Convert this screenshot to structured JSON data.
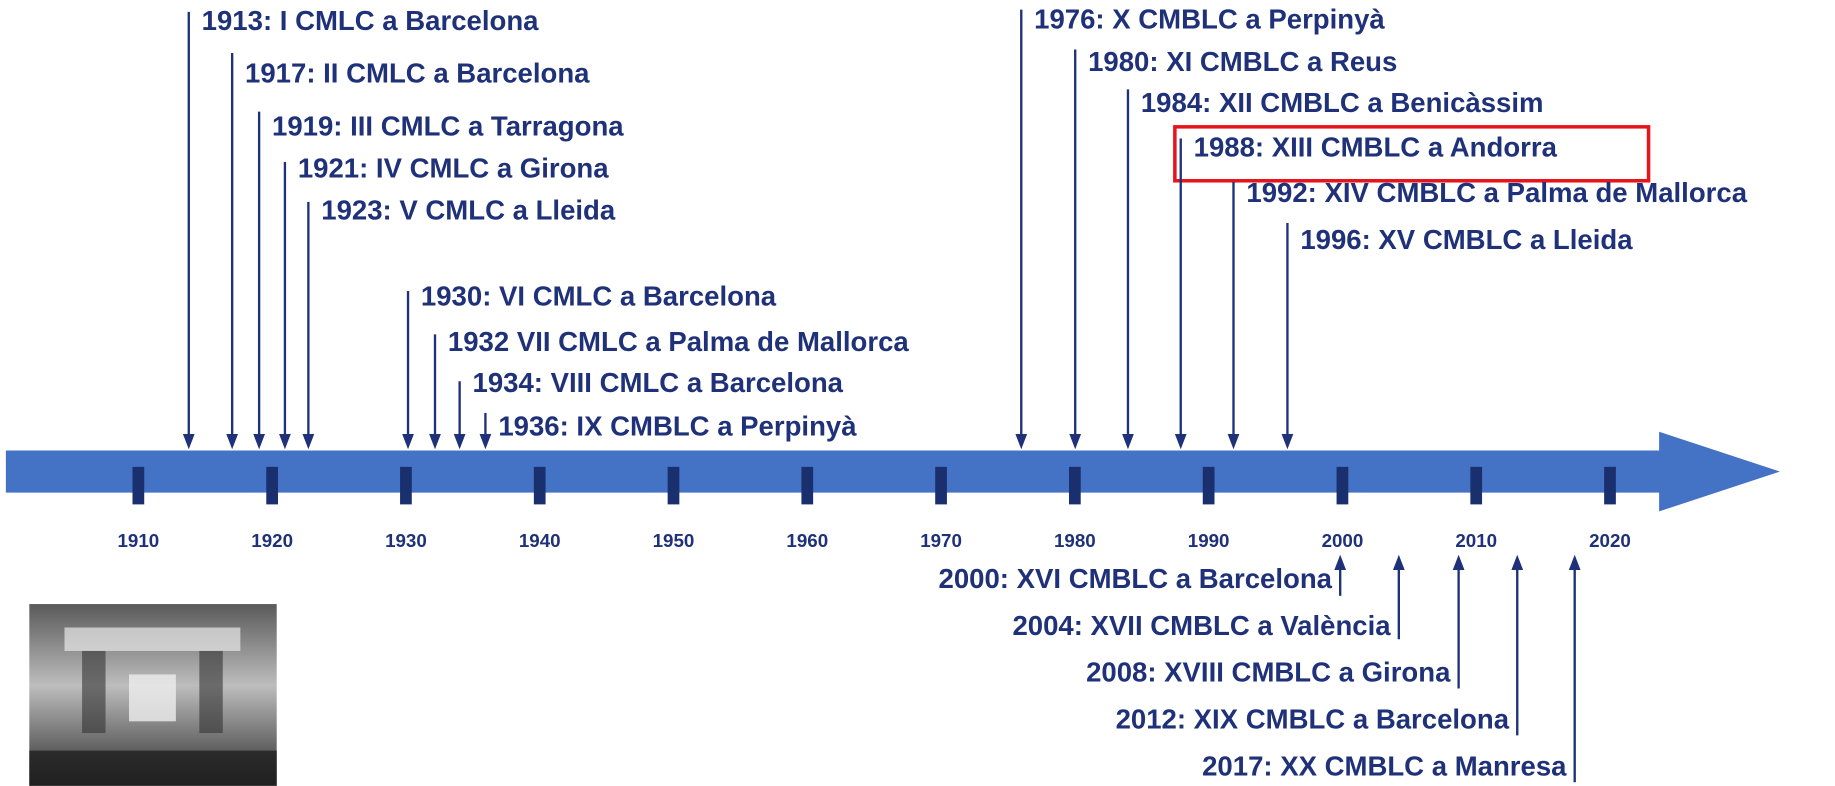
{
  "timeline": {
    "decades": [
      "1910",
      "1920",
      "1930",
      "1940",
      "1950",
      "1960",
      "1970",
      "1980",
      "1990",
      "2000",
      "2010",
      "2020"
    ],
    "events_above": [
      "1913: I CMLC a Barcelona",
      "1917: II CMLC a Barcelona",
      "1919: III CMLC a Tarragona",
      "1921: IV CMLC a Girona",
      "1923: V CMLC a Lleida",
      "1930: VI CMLC a Barcelona",
      "1932 VII CMLC a Palma de Mallorca",
      "1934: VIII CMLC a Barcelona",
      "1936: IX CMBLC a Perpinyà",
      "1976: X CMBLC a Perpinyà",
      "1980: XI CMBLC a Reus",
      "1984: XII CMBLC a Benicàssim",
      "1988: XIII CMBLC a Andorra",
      "1992: XIV CMBLC a Palma de Mallorca",
      "1996: XV CMBLC a Lleida"
    ],
    "events_below": [
      "2000: XVI CMBLC a Barcelona",
      "2004: XVII CMBLC a València",
      "2008: XVIII CMBLC a Girona",
      "2012: XIX CMBLC a Barcelona",
      "2017: XX CMBLC a Manresa"
    ]
  }
}
